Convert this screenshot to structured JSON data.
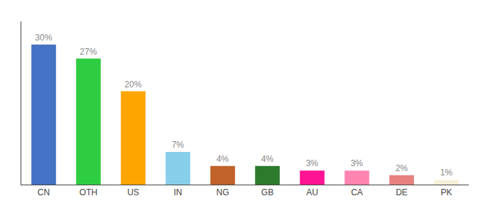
{
  "chart_data": {
    "type": "bar",
    "categories": [
      "CN",
      "OTH",
      "US",
      "IN",
      "NG",
      "GB",
      "AU",
      "CA",
      "DE",
      "PK"
    ],
    "values": [
      30,
      27,
      20,
      7,
      4,
      4,
      3,
      3,
      2,
      1
    ],
    "value_labels": [
      "30%",
      "27%",
      "20%",
      "7%",
      "4%",
      "4%",
      "3%",
      "3%",
      "2%",
      "1%"
    ],
    "data_labels": true,
    "colors": [
      "#4472C4",
      "#2ECC40",
      "#FFA500",
      "#87CEEB",
      "#C0622A",
      "#2D7A2D",
      "#FF1493",
      "#FF85B0",
      "#E88080",
      "#F5F0D8"
    ],
    "ylim": [
      0,
      35
    ],
    "grid": false,
    "tick_labels": "x"
  }
}
